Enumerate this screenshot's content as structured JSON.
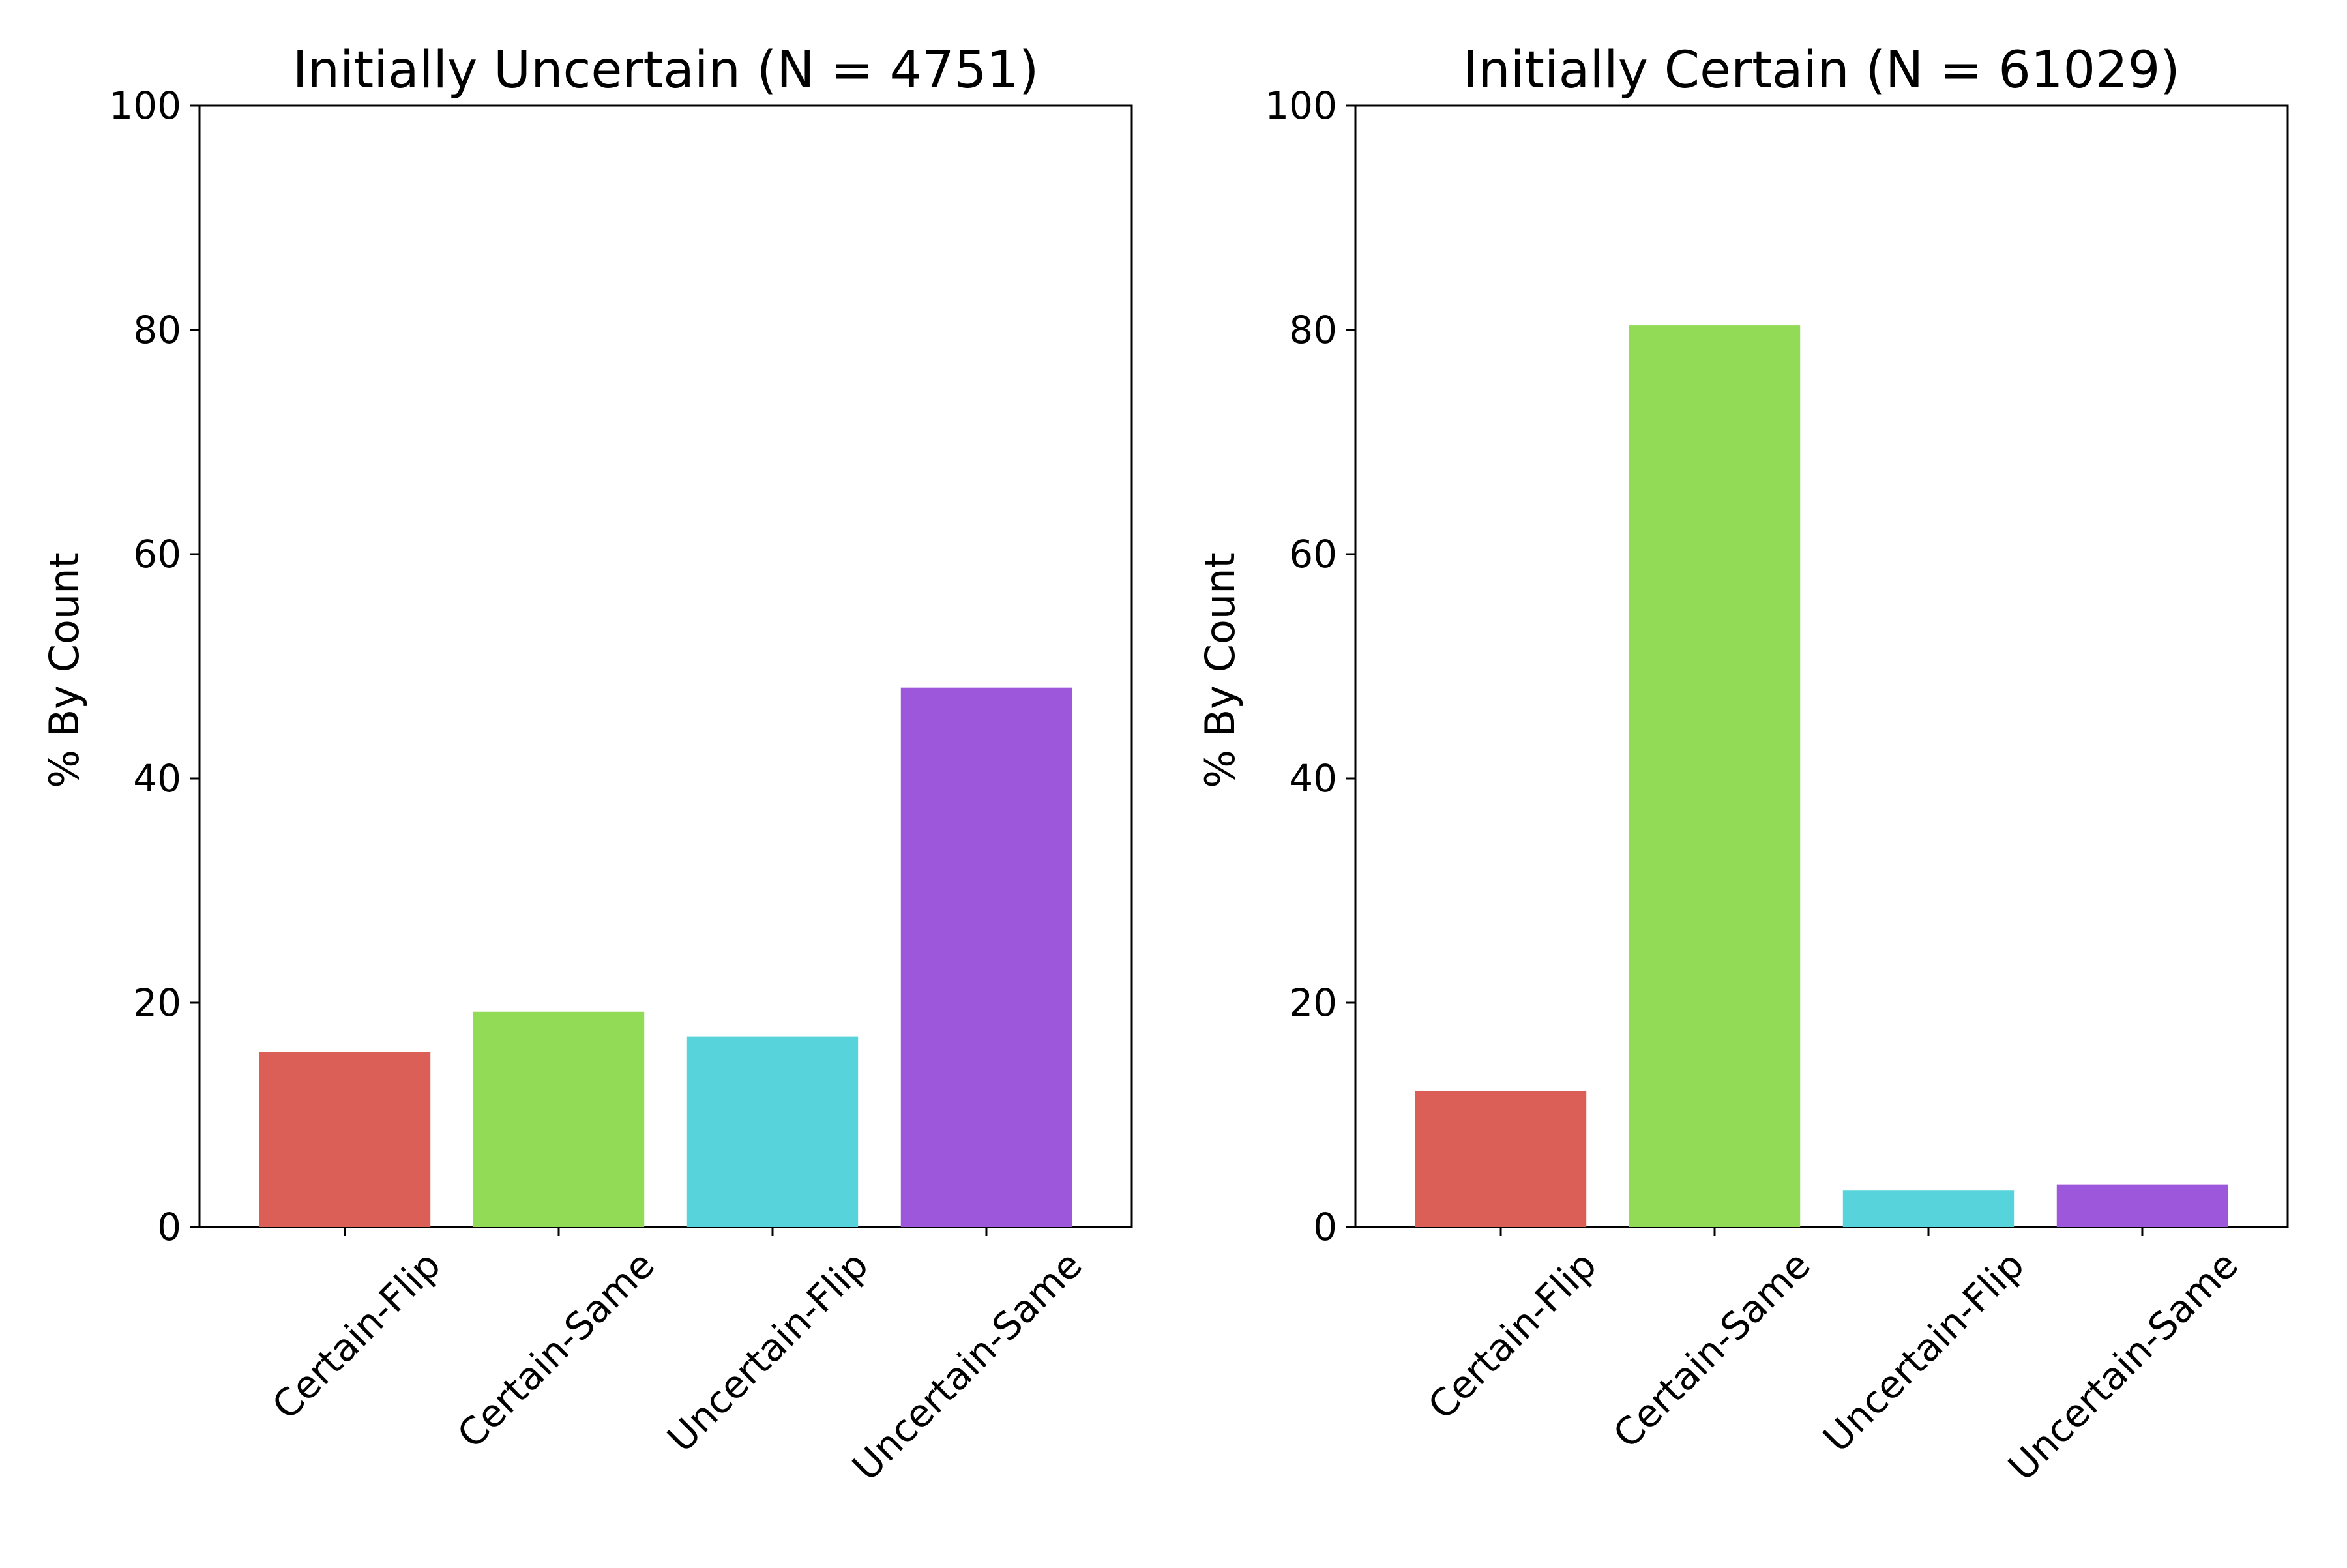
{
  "chart_data": [
    {
      "type": "bar",
      "title": "Initially Uncertain (N = 4751)",
      "categories": [
        "Certain-Flip",
        "Certain-Same",
        "Uncertain-Flip",
        "Uncertain-Same"
      ],
      "values": [
        15.6,
        19.2,
        17.0,
        48.1
      ],
      "colors": [
        "#db5f57",
        "#91db57",
        "#57d3db",
        "#9d57db"
      ],
      "xlabel": "",
      "ylabel": "% By Count",
      "ylim": [
        0,
        100
      ],
      "yticks": [
        "0",
        "20",
        "40",
        "60",
        "80",
        "100"
      ],
      "grid": false
    },
    {
      "type": "bar",
      "title": "Initially Certain (N = 61029)",
      "categories": [
        "Certain-Flip",
        "Certain-Same",
        "Uncertain-Flip",
        "Uncertain-Same"
      ],
      "values": [
        12.1,
        80.4,
        3.3,
        3.8
      ],
      "colors": [
        "#db5f57",
        "#91db57",
        "#57d3db",
        "#9d57db"
      ],
      "xlabel": "",
      "ylabel": "% By Count",
      "ylim": [
        0,
        100
      ],
      "yticks": [
        "0",
        "20",
        "40",
        "60",
        "80",
        "100"
      ],
      "grid": false
    }
  ]
}
